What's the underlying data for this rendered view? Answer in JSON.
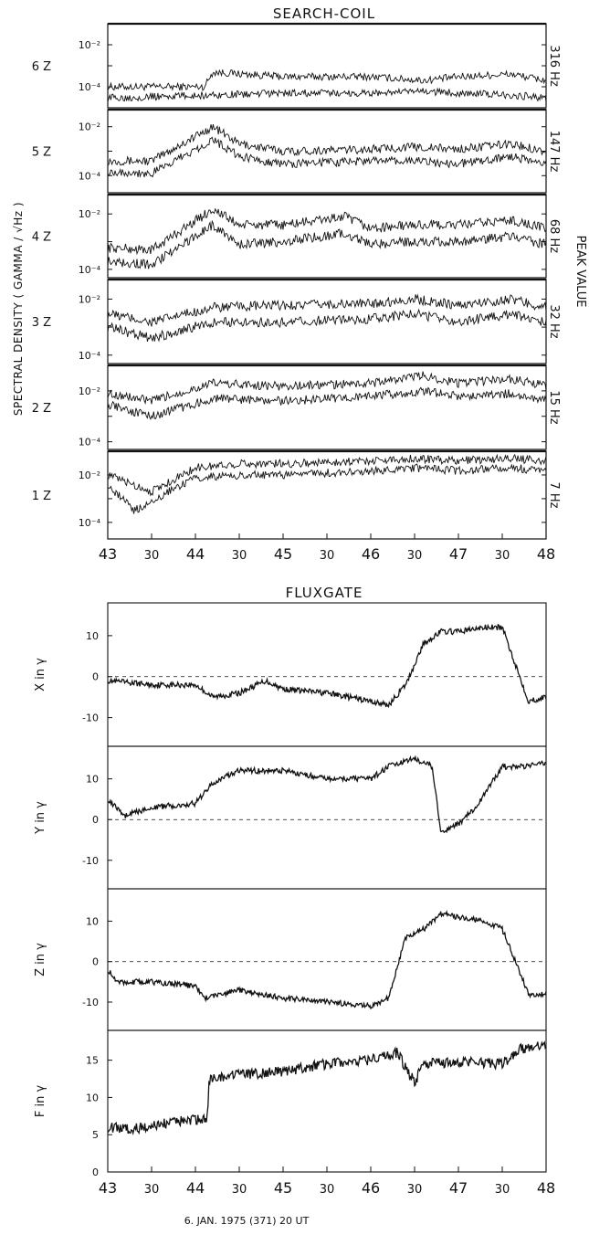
{
  "chart_data": [
    {
      "type": "line",
      "title": "SEARCH-COIL",
      "ylabel": "SPECTRAL DENSITY ( GAMMA / √Hz )",
      "right_label": "PEAK VALUE",
      "y_scale": "log",
      "x_tick_labels": [
        "43",
        "30",
        "44",
        "30",
        "45",
        "30",
        "46",
        "30",
        "47",
        "30",
        "48"
      ],
      "xlim": [
        43,
        48
      ],
      "panels": [
        {
          "channel": "6 Z",
          "freq": "316 Hz",
          "ylim": [
            1e-05,
            0.1
          ],
          "y_ticks": [
            "10⁻²",
            "10⁻⁴"
          ],
          "series": [
            {
              "x": [
                43,
                44.1,
                44.2,
                45,
                46,
                46.6,
                47,
                47.6,
                48
              ],
              "values": [
                0.0001,
                0.0001,
                0.0005,
                0.0003,
                0.0003,
                0.0002,
                0.0003,
                0.0004,
                0.0002
              ]
            },
            {
              "x": [
                43,
                44.2,
                45,
                46,
                46.6,
                47.6,
                48
              ],
              "values": [
                3e-05,
                4e-05,
                5e-05,
                5e-05,
                6e-05,
                4e-05,
                3e-05
              ]
            }
          ]
        },
        {
          "channel": "5 Z",
          "freq": "147 Hz",
          "ylim": [
            2e-05,
            0.05
          ],
          "y_ticks": [
            "10⁻²",
            "10⁻⁴"
          ],
          "series": [
            {
              "x": [
                43,
                43.5,
                44.2,
                44.5,
                45,
                46,
                46.5,
                47,
                47.6,
                48
              ],
              "values": [
                0.0004,
                0.0004,
                0.01,
                0.002,
                0.001,
                0.0012,
                0.0015,
                0.0012,
                0.002,
                0.001
              ]
            },
            {
              "x": [
                43,
                43.5,
                44.2,
                44.5,
                45,
                46,
                46.5,
                47,
                47.6,
                48
              ],
              "values": [
                0.00015,
                0.00012,
                0.003,
                0.0006,
                0.0003,
                0.0004,
                0.0004,
                0.0003,
                0.0006,
                0.0003
              ]
            }
          ]
        },
        {
          "channel": "4 Z",
          "freq": "68 Hz",
          "ylim": [
            5e-05,
            0.05
          ],
          "y_ticks": [
            "10⁻²",
            "10⁻⁴"
          ],
          "series": [
            {
              "x": [
                43,
                43.5,
                44.2,
                44.5,
                45,
                45.7,
                46,
                46.5,
                47,
                47.6,
                48
              ],
              "values": [
                0.0006,
                0.0005,
                0.015,
                0.004,
                0.004,
                0.008,
                0.003,
                0.004,
                0.004,
                0.006,
                0.003
              ]
            },
            {
              "x": [
                43,
                43.5,
                44.2,
                44.5,
                45,
                45.7,
                46,
                46.5,
                47,
                47.6,
                48
              ],
              "values": [
                0.0002,
                0.00015,
                0.004,
                0.0008,
                0.001,
                0.002,
                0.0008,
                0.001,
                0.001,
                0.0015,
                0.0008
              ]
            }
          ]
        },
        {
          "channel": "3 Z",
          "freq": "32 Hz",
          "ylim": [
            5e-05,
            0.05
          ],
          "y_ticks": [
            "10⁻²",
            "10⁻⁴"
          ],
          "series": [
            {
              "x": [
                43,
                43.5,
                44.2,
                45,
                46,
                46.5,
                47,
                47.6,
                48
              ],
              "values": [
                0.003,
                0.0015,
                0.005,
                0.006,
                0.007,
                0.01,
                0.006,
                0.01,
                0.005
              ]
            },
            {
              "x": [
                43,
                43.5,
                44.2,
                45,
                46,
                46.5,
                47,
                47.6,
                48
              ],
              "values": [
                0.001,
                0.0004,
                0.0015,
                0.0015,
                0.002,
                0.003,
                0.0015,
                0.003,
                0.0015
              ]
            }
          ]
        },
        {
          "channel": "2 Z",
          "freq": "15 Hz",
          "ylim": [
            5e-05,
            0.1
          ],
          "y_ticks": [
            "10⁻²",
            "10⁻⁴"
          ],
          "series": [
            {
              "x": [
                43,
                43.5,
                44.2,
                45,
                46,
                46.6,
                47,
                47.6,
                48
              ],
              "values": [
                0.008,
                0.004,
                0.02,
                0.015,
                0.02,
                0.04,
                0.02,
                0.03,
                0.015
              ]
            },
            {
              "x": [
                43,
                43.5,
                44.2,
                45,
                46,
                46.6,
                47,
                47.6,
                48
              ],
              "values": [
                0.003,
                0.001,
                0.005,
                0.004,
                0.006,
                0.01,
                0.006,
                0.008,
                0.004
              ]
            }
          ]
        },
        {
          "channel": "1 Z",
          "freq": "7 Hz",
          "ylim": [
            2e-05,
            0.1
          ],
          "y_ticks": [
            "10⁻²",
            "10⁻⁴"
          ],
          "series": [
            {
              "x": [
                43,
                43.5,
                44,
                44.5,
                45,
                46,
                46.5,
                47,
                47.6,
                48
              ],
              "values": [
                0.01,
                0.002,
                0.02,
                0.03,
                0.03,
                0.04,
                0.05,
                0.04,
                0.05,
                0.04
              ]
            },
            {
              "x": [
                43,
                43.3,
                43.5,
                44,
                44.5,
                45,
                46,
                46.5,
                47,
                47.6,
                48
              ],
              "values": [
                0.004,
                0.0003,
                0.0008,
                0.008,
                0.01,
                0.01,
                0.015,
                0.02,
                0.015,
                0.02,
                0.015
              ]
            }
          ]
        }
      ]
    },
    {
      "type": "line",
      "title": "FLUXGATE",
      "xlabel": "6. JAN. 1975 (371) 20 UT",
      "x_tick_labels": [
        "43",
        "30",
        "44",
        "30",
        "45",
        "30",
        "46",
        "30",
        "47",
        "30",
        "48"
      ],
      "xlim": [
        43,
        48
      ],
      "panels": [
        {
          "ylabel": "X in γ",
          "ylim": [
            -17,
            18
          ],
          "y_ticks": [
            10,
            0,
            -10
          ],
          "zero_line": true,
          "series": [
            {
              "x": [
                43,
                43.5,
                44,
                44.2,
                44.5,
                44.8,
                45,
                45.5,
                46,
                46.2,
                46.4,
                46.6,
                46.8,
                47,
                47.3,
                47.5,
                47.8,
                48
              ],
              "values": [
                -1,
                -2,
                -2,
                -5,
                -4,
                -1,
                -3,
                -4,
                -6,
                -7,
                -2,
                8,
                11,
                11,
                12,
                12,
                -6,
                -5
              ]
            }
          ]
        },
        {
          "ylabel": "Y in γ",
          "ylim": [
            -17,
            18
          ],
          "y_ticks": [
            10,
            0,
            -10
          ],
          "zero_line": true,
          "series": [
            {
              "x": [
                43,
                43.2,
                43.5,
                44,
                44.2,
                44.5,
                45,
                45.5,
                46,
                46.2,
                46.5,
                46.7,
                46.8,
                47,
                47.2,
                47.5,
                47.8,
                48
              ],
              "values": [
                5,
                1,
                3,
                4,
                9,
                12,
                12,
                10,
                10,
                13,
                15,
                13,
                -3,
                -1,
                3,
                13,
                13,
                14
              ]
            }
          ]
        },
        {
          "ylabel": "Z in γ",
          "ylim": [
            -17,
            18
          ],
          "y_ticks": [
            10,
            0,
            -10
          ],
          "zero_line": true,
          "series": [
            {
              "x": [
                43,
                43.1,
                43.5,
                44,
                44.1,
                44.5,
                45,
                45.5,
                46,
                46.2,
                46.4,
                46.6,
                46.8,
                47,
                47.3,
                47.5,
                47.8,
                48
              ],
              "values": [
                -2,
                -5,
                -5,
                -6,
                -9,
                -7,
                -9,
                -10,
                -11,
                -9,
                6,
                8,
                12,
                11,
                10,
                8,
                -8,
                -8
              ]
            }
          ]
        },
        {
          "ylabel": "F in γ",
          "ylim": [
            0,
            19
          ],
          "y_ticks": [
            15,
            10,
            5,
            0
          ],
          "zero_line": false,
          "series": [
            {
              "x": [
                43,
                43.3,
                43.6,
                44,
                44.14,
                44.15,
                44.5,
                45,
                45.5,
                46,
                46.3,
                46.5,
                46.6,
                47,
                47.5,
                47.7,
                48
              ],
              "values": [
                6,
                5.8,
                6.5,
                7,
                7.2,
                12.5,
                13,
                13.5,
                14.5,
                15,
                16,
                12,
                14.5,
                14.8,
                14.5,
                16.5,
                17
              ]
            }
          ]
        }
      ]
    }
  ]
}
